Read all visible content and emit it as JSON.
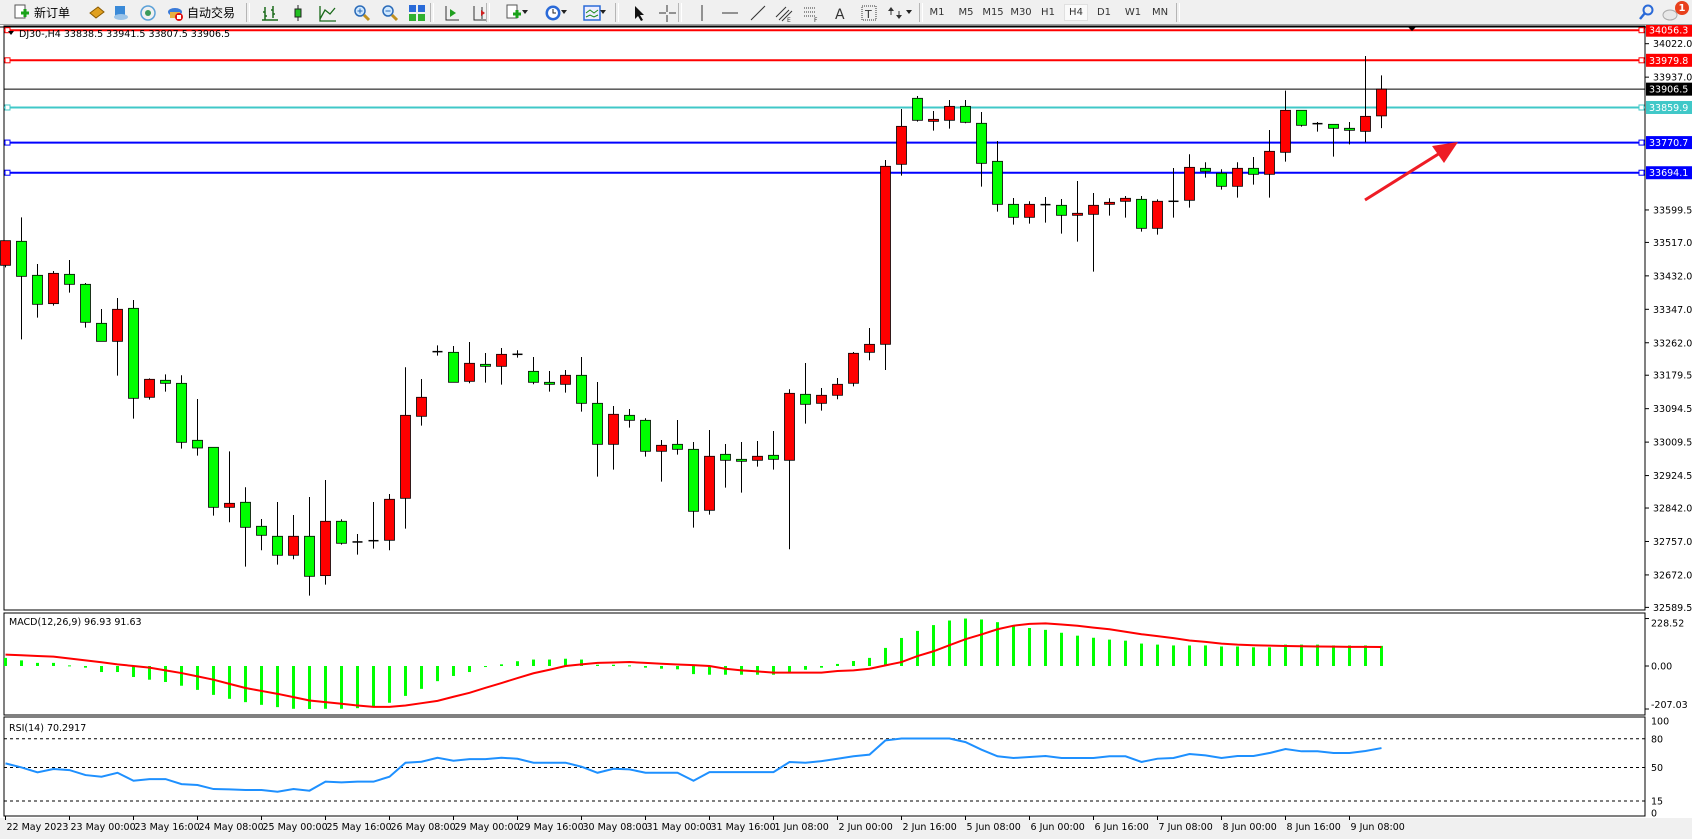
{
  "toolbar": {
    "new_order_label": "新订单",
    "auto_trading_label": "自动交易",
    "icons": [
      "new-order-icon",
      "meta-editor-icon",
      "data-window-icon",
      "signals-icon",
      "auto-trading-icon",
      "bar-chart-icon",
      "candlestick-chart-icon",
      "line-chart-icon",
      "zoom-in-icon",
      "zoom-out-icon",
      "tile-windows-icon",
      "auto-scroll-icon",
      "chart-shift-icon",
      "indicators-icon",
      "periods-icon",
      "templates-icon",
      "cursor-icon",
      "crosshair-icon",
      "vertical-line-icon",
      "horizontal-line-icon",
      "trendline-icon",
      "equidistant-channel-icon",
      "fibonacci-icon",
      "text-icon",
      "text-label-icon",
      "arrows-icon"
    ],
    "timeframes": [
      "M1",
      "M5",
      "M15",
      "M30",
      "H1",
      "H4",
      "D1",
      "W1",
      "MN"
    ],
    "active_timeframe": "H4",
    "notification_count": "1"
  },
  "colors": {
    "bull_body": "#ff0000",
    "bear_body": "#00ff00",
    "wick": "#000000",
    "macd_hist": "#00ff00",
    "macd_signal": "#ff0000",
    "rsi_line": "#1e90ff",
    "resistance": "#ff0000",
    "support": "#0000ff",
    "pivot": "#40c8c8",
    "bid_line": "#000000",
    "arrow": "#ee1c25"
  },
  "chart_data": {
    "type": "candlestick",
    "symbol_info": "DJ30-,H4  33838.5 33941.5 33807.5 33906.5",
    "ylim": [
      32589.5,
      34056.3
    ],
    "price_ticks": [
      "34022.0",
      "33937.0",
      "33599.5",
      "33517.0",
      "33432.0",
      "33347.0",
      "33262.0",
      "33179.5",
      "33094.5",
      "33009.5",
      "32924.5",
      "32842.0",
      "32757.0",
      "32672.0",
      "32589.5"
    ],
    "hlines": [
      {
        "value": "34056.3",
        "kind": "resistance"
      },
      {
        "value": "33979.8",
        "kind": "resistance"
      },
      {
        "value": "33906.5",
        "kind": "bid_line"
      },
      {
        "value": "33859.9",
        "kind": "pivot"
      },
      {
        "value": "33770.7",
        "kind": "support"
      },
      {
        "value": "33694.1",
        "kind": "support"
      }
    ],
    "time_labels": [
      "22 May 2023",
      "23 May 00:00",
      "23 May 16:00",
      "24 May 08:00",
      "25 May 00:00",
      "25 May 16:00",
      "26 May 08:00",
      "29 May 00:00",
      "29 May 16:00",
      "30 May 08:00",
      "31 May 00:00",
      "31 May 16:00",
      "1 Jun 08:00",
      "2 Jun 00:00",
      "2 Jun 16:00",
      "5 Jun 08:00",
      "6 Jun 00:00",
      "6 Jun 16:00",
      "7 Jun 08:00",
      "8 Jun 00:00",
      "8 Jun 16:00",
      "9 Jun 08:00"
    ],
    "ohlc": [
      [
        33458.8,
        33521.4,
        33453.7,
        33521.4
      ],
      [
        33519.8,
        33580.7,
        33270.7,
        33430.8
      ],
      [
        33433.4,
        33462.2,
        33325.8,
        33359.7
      ],
      [
        33361.4,
        33444.4,
        33356.3,
        33438.4
      ],
      [
        33435.9,
        33472.3,
        33389.3,
        33410.5
      ],
      [
        33410.5,
        33413.9,
        33300.4,
        33314.0
      ],
      [
        33311.4,
        33347.8,
        33265.6,
        33265.6
      ],
      [
        33265.6,
        33375.8,
        33178.4,
        33347.0
      ],
      [
        33349.5,
        33370.7,
        33069.1,
        33120.8
      ],
      [
        33123.4,
        33171.6,
        33117.4,
        33169.1
      ],
      [
        33166.6,
        33181.8,
        33137.8,
        33158.9
      ],
      [
        33158.9,
        33179.3,
        32992.9,
        33009.0
      ],
      [
        33014.1,
        33119.1,
        32975.1,
        32994.6
      ],
      [
        32996.3,
        32996.3,
        32822.7,
        32843.8
      ],
      [
        32843.8,
        32986.1,
        32805.7,
        32854.0
      ],
      [
        32856.6,
        32894.7,
        32693.1,
        32793.0
      ],
      [
        32795.6,
        32814.2,
        32734.6,
        32772.7
      ],
      [
        32770.2,
        32857.4,
        32698.2,
        32721.9
      ],
      [
        32721.9,
        32824.4,
        32711.7,
        32770.2
      ],
      [
        32770.2,
        32870.1,
        32619.4,
        32668.5
      ],
      [
        32670.2,
        32913.3,
        32647.3,
        32808.3
      ],
      [
        32808.3,
        32813.4,
        32749.0,
        32752.4
      ],
      [
        32755.8,
        32776.1,
        32723.6,
        32755.8
      ],
      [
        32759.0,
        32857.4,
        32738.8,
        32759.0
      ],
      [
        32760.0,
        32877.7,
        32734.6,
        32864.2
      ],
      [
        32866.7,
        33199.6,
        32789.6,
        33077.6
      ],
      [
        33075.1,
        33169.9,
        33051.4,
        33123.4
      ],
      [
        33239.4,
        33255.5,
        33229.2,
        33239.4
      ],
      [
        33237.7,
        33253.8,
        33161.5,
        33161.5
      ],
      [
        33164.0,
        33264.0,
        33159.0,
        33209.8
      ],
      [
        33207.2,
        33236.0,
        33160.6,
        33202.1
      ],
      [
        33202.1,
        33248.7,
        33155.6,
        33232.6
      ],
      [
        33232.6,
        33242.8,
        33224.2,
        33232.6
      ],
      [
        33189.4,
        33225.9,
        33156.4,
        33161.5
      ],
      [
        33161.5,
        33190.3,
        33137.8,
        33156.4
      ],
      [
        33156.4,
        33192.8,
        33135.2,
        33179.3
      ],
      [
        33179.3,
        33225.9,
        33087.0,
        33108.1
      ],
      [
        33108.1,
        33162.3,
        32921.8,
        33003.9
      ],
      [
        33003.9,
        33101.4,
        32939.6,
        33080.2
      ],
      [
        33077.6,
        33093.7,
        33046.3,
        33064.9
      ],
      [
        33064.9,
        33070.0,
        32972.6,
        32986.2
      ],
      [
        32986.2,
        33015.0,
        32909.1,
        33001.4
      ],
      [
        33003.9,
        33065.8,
        32977.7,
        32991.2
      ],
      [
        32991.2,
        33009.9,
        32792.2,
        32833.7
      ],
      [
        32836.2,
        33040.4,
        32825.2,
        32973.5
      ],
      [
        32978.5,
        33004.8,
        32893.9,
        32963.3
      ],
      [
        32965.8,
        33009.9,
        32881.1,
        32960.8
      ],
      [
        32963.3,
        33012.4,
        32947.2,
        32973.5
      ],
      [
        32976.0,
        33037.8,
        32939.6,
        32965.8
      ],
      [
        32963.3,
        33143.7,
        32737.2,
        33133.5
      ],
      [
        33131.0,
        33210.6,
        33056.5,
        33105.6
      ],
      [
        33108.1,
        33147.1,
        33089.5,
        33128.5
      ],
      [
        33128.5,
        33172.5,
        33118.3,
        33156.4
      ],
      [
        33159.0,
        33238.6,
        33151.3,
        33235.2
      ],
      [
        33237.7,
        33299.6,
        33217.4,
        33258.0
      ],
      [
        33258.1,
        33726.5,
        33192.9,
        33710.4
      ],
      [
        33715.5,
        33856.1,
        33686.7,
        33812.0
      ],
      [
        33883.2,
        33889.1,
        33823.9,
        33827.3
      ],
      [
        33824.7,
        33851.0,
        33801.0,
        33829.8
      ],
      [
        33827.3,
        33878.9,
        33806.1,
        33862.8
      ],
      [
        33862.8,
        33878.9,
        33819.7,
        33822.2
      ],
      [
        33819.7,
        33848.4,
        33658.7,
        33718.0
      ],
      [
        33723.1,
        33774.8,
        33595.2,
        33613.8
      ],
      [
        33613.8,
        33630.0,
        33562.2,
        33580.8
      ],
      [
        33580.8,
        33621.5,
        33564.7,
        33613.8
      ],
      [
        33613.0,
        33632.5,
        33567.2,
        33613.0
      ],
      [
        33611.3,
        33627.4,
        33539.3,
        33585.9
      ],
      [
        33585.9,
        33673.1,
        33519.0,
        33591.0
      ],
      [
        33588.4,
        33642.6,
        33442.8,
        33611.3
      ],
      [
        33613.8,
        33629.1,
        33585.0,
        33618.9
      ],
      [
        33621.5,
        33635.0,
        33580.0,
        33629.1
      ],
      [
        33626.5,
        33635.0,
        33544.4,
        33552.8
      ],
      [
        33552.8,
        33626.5,
        33536.8,
        33621.5
      ],
      [
        33621.5,
        33706.0,
        33580.0,
        33621.5
      ],
      [
        33624.0,
        33740.9,
        33605.4,
        33707.8
      ],
      [
        33705.3,
        33720.6,
        33681.6,
        33697.7
      ],
      [
        33692.6,
        33702.8,
        33651.1,
        33659.6
      ],
      [
        33659.6,
        33720.6,
        33630.8,
        33705.3
      ],
      [
        33705.3,
        33734.1,
        33663.8,
        33690.1
      ],
      [
        33690.1,
        33802.7,
        33630.8,
        33748.5
      ],
      [
        33746.0,
        33902.7,
        33722.3,
        33852.7
      ],
      [
        33852.7,
        33852.7,
        33811.2,
        33814.6
      ],
      [
        33818.8,
        33823.0,
        33798.5,
        33818.8
      ],
      [
        33817.1,
        33817.1,
        33734.9,
        33807.0
      ],
      [
        33807.0,
        33823.0,
        33766.3,
        33801.9
      ],
      [
        33799.3,
        33990.7,
        33771.4,
        33837.4
      ],
      [
        33838.5,
        33941.5,
        33807.5,
        33906.5
      ]
    ],
    "macd": {
      "label": "MACD(12,26,9) 96.93 91.63",
      "ticks": [
        "228.52",
        "0.00",
        "-207.03"
      ],
      "ylim": [
        -207.03,
        228.52
      ],
      "histogram": [
        39,
        27,
        15,
        15,
        3,
        -8,
        -29,
        -29,
        -53,
        -66,
        -77,
        -95,
        -115,
        -139,
        -158,
        -174,
        -187,
        -198,
        -206,
        -207,
        -206,
        -206,
        -203,
        -194,
        -177,
        -144,
        -110,
        -73,
        -48,
        -29,
        -5,
        8,
        23,
        31,
        31,
        35,
        31,
        6,
        6,
        3,
        -8,
        -13,
        -16,
        -39,
        -42,
        -42,
        -42,
        -42,
        -42,
        -29,
        -18,
        -8,
        10,
        24,
        39,
        87,
        135,
        169,
        197,
        219,
        228.52,
        224,
        211,
        197,
        183,
        174,
        160,
        146,
        136,
        127,
        122,
        108,
        103,
        99,
        99,
        99,
        94,
        94,
        90,
        90,
        103,
        103,
        103,
        99,
        99,
        99,
        96.93
      ],
      "signal": [
        55,
        52,
        48,
        45,
        36,
        27,
        18,
        8,
        0,
        -8,
        -21,
        -34,
        -50,
        -66,
        -86,
        -106,
        -120,
        -134,
        -150,
        -166,
        -174,
        -182,
        -190,
        -197,
        -197,
        -190,
        -179,
        -168,
        -148,
        -129,
        -105,
        -82,
        -58,
        -35,
        -18,
        0,
        8,
        15,
        17,
        19,
        15,
        11,
        7,
        4,
        0,
        -13,
        -21,
        -26,
        -32,
        -32,
        -32,
        -32,
        -24,
        -21,
        -13,
        3,
        19,
        48,
        71,
        100,
        129,
        152,
        177,
        194,
        203,
        205,
        200,
        194,
        185,
        177,
        165,
        153,
        144,
        134,
        123,
        116,
        108,
        103,
        100,
        98,
        96,
        95,
        94,
        93,
        92,
        92,
        91.63
      ]
    },
    "rsi": {
      "label": "RSI(14) 70.2917",
      "ticks": [
        "100",
        "80",
        "50",
        "15",
        "0"
      ],
      "levels": [
        80,
        50,
        15
      ],
      "ylim": [
        0,
        100
      ],
      "values": [
        54.3,
        50.1,
        44.9,
        48.4,
        47.3,
        42.1,
        40.4,
        44.5,
        36.2,
        37.9,
        37.9,
        32.7,
        31.7,
        27.5,
        27.2,
        26.5,
        26.5,
        24.7,
        27.5,
        25.8,
        35.2,
        34.5,
        35.2,
        35.2,
        40.4,
        55,
        56,
        60.2,
        57.1,
        58.8,
        58.8,
        60.2,
        59.1,
        55,
        55,
        55,
        50.8,
        44.5,
        48.7,
        48,
        44.5,
        44.5,
        44.5,
        36.2,
        45.2,
        45.2,
        45.2,
        45.2,
        45.2,
        55.7,
        55,
        56.7,
        59.1,
        61.7,
        63.4,
        78.3,
        80.3,
        80.3,
        80.3,
        80.3,
        76.5,
        68.6,
        61.7,
        59.9,
        61,
        62,
        59.9,
        59.9,
        59.9,
        61.7,
        61.7,
        55.8,
        59.2,
        59.9,
        64.1,
        62.7,
        59.9,
        62,
        62,
        65.1,
        69.3,
        66.9,
        66.9,
        65.1,
        65.1,
        67.2,
        70.29
      ]
    }
  }
}
